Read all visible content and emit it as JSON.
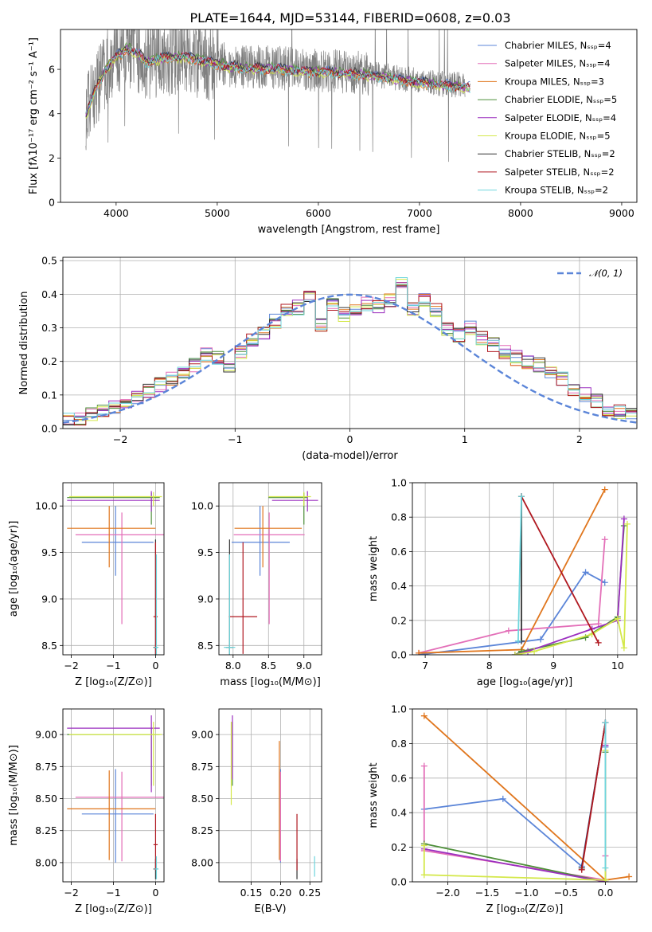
{
  "title": "PLATE=1644, MJD=53144, FIBERID=0608, z=0.03",
  "colors": {
    "Chabrier MILES": "#5b85d8",
    "Salpeter MILES": "#e36fb8",
    "Kroupa MILES": "#e0761d",
    "Chabrier ELODIE": "#4e8f3a",
    "Salpeter ELODIE": "#9b2fbf",
    "Kroupa ELODIE": "#d4e84a",
    "Chabrier STELIB": "#333333",
    "Salpeter STELIB": "#b01820",
    "Kroupa STELIB": "#6fd6dd",
    "data": "#808080"
  },
  "chart_data": [
    {
      "type": "line",
      "panel": "spectrum",
      "xlabel": "wavelength [Angstrom, rest frame]",
      "ylabel": "Flux [fλ10⁻¹⁷ erg cm⁻² s⁻¹ A⁻¹]",
      "xlim": [
        3450,
        9150
      ],
      "ylim": [
        0,
        7.8
      ],
      "xticks": [
        "4000",
        "5000",
        "6000",
        "7000",
        "8000",
        "9000"
      ],
      "yticks": [
        "0",
        "2",
        "4",
        "6"
      ],
      "legend": [
        "Chabrier MILES, Nₛₛₚ=4",
        "Salpeter MILES, Nₛₛₚ=4",
        "Kroupa MILES, Nₛₛₚ=3",
        "Chabrier ELODIE, Nₛₛₚ=5",
        "Salpeter ELODIE, Nₛₛₚ=4",
        "Kroupa ELODIE, Nₛₛₚ=5",
        "Chabrier STELIB, Nₛₛₚ=2",
        "Salpeter STELIB, Nₛₛₚ=2",
        "Kroupa STELIB, Nₛₛₚ=2"
      ],
      "legend_position": "top-right",
      "model_continuum": {
        "x": [
          3700,
          3800,
          3900,
          4000,
          4100,
          4200,
          4300,
          4500,
          4700,
          4900,
          5100,
          5300,
          5500,
          5800,
          6000,
          6200,
          6500,
          6800,
          7000,
          7200,
          7400,
          7500
        ],
        "y": [
          4.0,
          5.2,
          6.1,
          6.6,
          7.0,
          6.8,
          6.4,
          6.6,
          6.6,
          6.4,
          6.2,
          6.1,
          6.1,
          6.0,
          5.95,
          5.9,
          5.8,
          5.6,
          5.45,
          5.35,
          5.3,
          5.2
        ]
      },
      "data_extent": [
        3700,
        7450
      ]
    },
    {
      "type": "histogram",
      "panel": "residuals",
      "xlabel": "(data-model)/error",
      "ylabel": "Normed distribution",
      "xlim": [
        -2.5,
        2.5
      ],
      "ylim": [
        0,
        0.51
      ],
      "xticks": [
        "−2",
        "−1",
        "0",
        "1",
        "2"
      ],
      "yticks": [
        "0.0",
        "0.1",
        "0.2",
        "0.3",
        "0.4",
        "0.5"
      ],
      "bin_width": 0.1,
      "bin_start": -2.5,
      "reference": {
        "label": "𝒩(0, 1)",
        "mean": 0,
        "sigma": 1,
        "color": "#5b85d8"
      },
      "legend_position": "top-right",
      "approx_values": [
        0.025,
        0.03,
        0.04,
        0.05,
        0.06,
        0.07,
        0.09,
        0.11,
        0.13,
        0.15,
        0.17,
        0.19,
        0.22,
        0.21,
        0.19,
        0.23,
        0.26,
        0.28,
        0.32,
        0.35,
        0.36,
        0.4,
        0.31,
        0.37,
        0.34,
        0.36,
        0.37,
        0.36,
        0.38,
        0.44,
        0.36,
        0.38,
        0.35,
        0.3,
        0.28,
        0.3,
        0.27,
        0.25,
        0.23,
        0.21,
        0.2,
        0.19,
        0.17,
        0.15,
        0.12,
        0.1,
        0.08,
        0.06,
        0.05,
        0.04
      ]
    },
    {
      "type": "scatter",
      "panel": "age-vs-Z",
      "xlabel": "Z [log₁₀(Z/Z⊙)]",
      "ylabel": "age  [log₁₀(age/yr)]",
      "xlim": [
        -2.2,
        0.2
      ],
      "ylim": [
        8.4,
        10.25
      ],
      "xticks": [
        "−2",
        "−1",
        "0"
      ],
      "yticks": [
        "8.5",
        "9.0",
        "9.5",
        "10.0"
      ],
      "points": [
        {
          "model": "Chabrier MILES",
          "x": -0.95,
          "xerr": [
            0.8,
            0.9
          ],
          "y": 9.61,
          "yerr": [
            0.36,
            0.39
          ]
        },
        {
          "model": "Salpeter MILES",
          "x": -0.8,
          "xerr": [
            1.1,
            1.1
          ],
          "y": 9.69,
          "yerr": [
            0.96,
            0.24
          ]
        },
        {
          "model": "Kroupa MILES",
          "x": -1.1,
          "xerr": [
            1.0,
            1.1
          ],
          "y": 9.76,
          "yerr": [
            0.42,
            0.24
          ]
        },
        {
          "model": "Chabrier ELODIE",
          "x": -0.1,
          "xerr": [
            2.0,
            0.2
          ],
          "y": 10.09,
          "yerr": [
            0.29,
            0.05
          ]
        },
        {
          "model": "Salpeter ELODIE",
          "x": -0.1,
          "xerr": [
            2.0,
            0.2
          ],
          "y": 10.06,
          "yerr": [
            0.12,
            0.1
          ]
        },
        {
          "model": "Kroupa ELODIE",
          "x": -0.05,
          "xerr": [
            2.0,
            0.2
          ],
          "y": 10.1,
          "yerr": [
            0.1,
            0.05
          ]
        },
        {
          "model": "Chabrier STELIB",
          "x": 0.0,
          "xerr": [
            0.05,
            0.05
          ],
          "y": 8.48,
          "yerr": [
            0.1,
            1.16
          ]
        },
        {
          "model": "Salpeter STELIB",
          "x": 0.0,
          "xerr": [
            0.05,
            0.05
          ],
          "y": 8.81,
          "yerr": [
            0.4,
            0.8
          ]
        },
        {
          "model": "Kroupa STELIB",
          "x": 0.02,
          "xerr": [
            0.05,
            0.05
          ],
          "y": 8.48,
          "yerr": [
            0.1,
            1.0
          ]
        }
      ]
    },
    {
      "type": "scatter",
      "panel": "age-vs-mass",
      "xlabel": "mass [log₁₀(M/M⊙)]",
      "xlim": [
        7.8,
        9.25
      ],
      "ylim": [
        8.4,
        10.25
      ],
      "xticks": [
        "8.0",
        "8.5",
        "9.0"
      ],
      "yticks": [
        "8.5",
        "9.0",
        "9.5",
        "10.0"
      ],
      "points": [
        {
          "model": "Chabrier MILES",
          "x": 8.38,
          "xerr": [
            0.4,
            0.42
          ],
          "y": 9.61,
          "yerr": [
            0.36,
            0.39
          ]
        },
        {
          "model": "Salpeter MILES",
          "x": 8.51,
          "xerr": [
            0.5,
            0.5
          ],
          "y": 9.69,
          "yerr": [
            0.96,
            0.24
          ]
        },
        {
          "model": "Kroupa MILES",
          "x": 8.42,
          "xerr": [
            0.4,
            0.55
          ],
          "y": 9.76,
          "yerr": [
            0.42,
            0.24
          ]
        },
        {
          "model": "Chabrier ELODIE",
          "x": 9.0,
          "xerr": [
            0.5,
            0.05
          ],
          "y": 10.09,
          "yerr": [
            0.29,
            0.05
          ]
        },
        {
          "model": "Salpeter ELODIE",
          "x": 9.05,
          "xerr": [
            0.5,
            0.15
          ],
          "y": 10.06,
          "yerr": [
            0.12,
            0.1
          ]
        },
        {
          "model": "Kroupa ELODIE",
          "x": 9.0,
          "xerr": [
            0.5,
            0.1
          ],
          "y": 10.1,
          "yerr": [
            0.1,
            0.05
          ]
        },
        {
          "model": "Chabrier STELIB",
          "x": 7.95,
          "xerr": [
            0.05,
            0.05
          ],
          "y": 8.48,
          "yerr": [
            0.1,
            1.16
          ]
        },
        {
          "model": "Salpeter STELIB",
          "x": 8.14,
          "xerr": [
            0.2,
            0.2
          ],
          "y": 8.81,
          "yerr": [
            0.4,
            0.8
          ]
        },
        {
          "model": "Kroupa STELIB",
          "x": 7.95,
          "xerr": [
            0.08,
            0.08
          ],
          "y": 8.48,
          "yerr": [
            0.1,
            1.0
          ]
        }
      ]
    },
    {
      "type": "line",
      "panel": "weight-vs-age",
      "xlabel": "age  [log₁₀(age/yr)]",
      "ylabel": "mass weight",
      "xlim": [
        6.8,
        10.3
      ],
      "ylim": [
        0,
        1
      ],
      "xticks": [
        "7",
        "8",
        "9",
        "10"
      ],
      "yticks": [
        "0.0",
        "0.2",
        "0.4",
        "0.6",
        "0.8",
        "1.0"
      ],
      "series": [
        {
          "model": "Chabrier MILES",
          "points": [
            [
              6.9,
              0.0
            ],
            [
              8.8,
              0.09
            ],
            [
              9.5,
              0.48
            ],
            [
              9.8,
              0.42
            ]
          ]
        },
        {
          "model": "Salpeter MILES",
          "points": [
            [
              6.9,
              0.01
            ],
            [
              8.3,
              0.14
            ],
            [
              9.7,
              0.18
            ],
            [
              9.8,
              0.67
            ]
          ]
        },
        {
          "model": "Kroupa MILES",
          "points": [
            [
              6.9,
              0.01
            ],
            [
              8.5,
              0.03
            ],
            [
              9.8,
              0.96
            ]
          ]
        },
        {
          "model": "Chabrier ELODIE",
          "points": [
            [
              8.4,
              0.0
            ],
            [
              8.5,
              0.02
            ],
            [
              9.5,
              0.1
            ],
            [
              10.0,
              0.22
            ],
            [
              10.1,
              0.75
            ]
          ]
        },
        {
          "model": "Salpeter ELODIE",
          "points": [
            [
              8.4,
              0.0
            ],
            [
              8.6,
              0.02
            ],
            [
              9.6,
              0.15
            ],
            [
              10.0,
              0.2
            ],
            [
              10.1,
              0.79
            ]
          ]
        },
        {
          "model": "Kroupa ELODIE",
          "points": [
            [
              8.4,
              0.0
            ],
            [
              8.7,
              0.02
            ],
            [
              9.6,
              0.12
            ],
            [
              10.0,
              0.21
            ],
            [
              10.1,
              0.04
            ],
            [
              10.15,
              0.76
            ]
          ]
        },
        {
          "model": "Chabrier STELIB",
          "points": [
            [
              8.5,
              0.08
            ],
            [
              8.5,
              0.92
            ]
          ]
        },
        {
          "model": "Salpeter STELIB",
          "points": [
            [
              8.5,
              0.92
            ],
            [
              9.7,
              0.07
            ]
          ]
        },
        {
          "model": "Kroupa STELIB",
          "points": [
            [
              8.5,
              0.92
            ],
            [
              8.45,
              0.08
            ]
          ]
        }
      ]
    },
    {
      "type": "scatter",
      "panel": "mass-vs-Z",
      "xlabel": "Z [log₁₀(Z/Z⊙)]",
      "ylabel": "mass [log₁₀(M/M⊙)]",
      "xlim": [
        -2.2,
        0.2
      ],
      "ylim": [
        7.85,
        9.2
      ],
      "xticks": [
        "−2",
        "−1",
        "0"
      ],
      "yticks": [
        "8.00",
        "8.25",
        "8.50",
        "8.75",
        "9.00"
      ],
      "points": [
        {
          "model": "Chabrier MILES",
          "x": -0.95,
          "xerr": [
            0.8,
            0.9
          ],
          "y": 8.38,
          "yerr": [
            0.38,
            0.35
          ]
        },
        {
          "model": "Salpeter MILES",
          "x": -0.8,
          "xerr": [
            1.1,
            1.1
          ],
          "y": 8.51,
          "yerr": [
            0.5,
            0.2
          ]
        },
        {
          "model": "Kroupa MILES",
          "x": -1.1,
          "xerr": [
            1.0,
            1.1
          ],
          "y": 8.42,
          "yerr": [
            0.4,
            0.3
          ]
        },
        {
          "model": "Chabrier ELODIE",
          "x": -0.1,
          "xerr": [
            2.0,
            0.2
          ],
          "y": 9.0,
          "yerr": [
            0.4,
            0.05
          ]
        },
        {
          "model": "Salpeter ELODIE",
          "x": -0.1,
          "xerr": [
            2.0,
            0.2
          ],
          "y": 9.05,
          "yerr": [
            0.5,
            0.1
          ]
        },
        {
          "model": "Kroupa ELODIE",
          "x": -0.05,
          "xerr": [
            2.0,
            0.2
          ],
          "y": 9.0,
          "yerr": [
            0.4,
            0.1
          ]
        },
        {
          "model": "Chabrier STELIB",
          "x": 0.0,
          "xerr": [
            0.05,
            0.05
          ],
          "y": 7.95,
          "yerr": [
            0.08,
            0.08
          ]
        },
        {
          "model": "Salpeter STELIB",
          "x": 0.0,
          "xerr": [
            0.05,
            0.05
          ],
          "y": 8.14,
          "yerr": [
            0.2,
            0.24
          ]
        },
        {
          "model": "Kroupa STELIB",
          "x": 0.02,
          "xerr": [
            0.05,
            0.05
          ],
          "y": 7.95,
          "yerr": [
            0.08,
            0.1
          ]
        }
      ]
    },
    {
      "type": "scatter",
      "panel": "mass-vs-ebv",
      "xlabel": "E(B-V)",
      "xlim": [
        0.095,
        0.27
      ],
      "ylim": [
        7.85,
        9.2
      ],
      "xticks": [
        "0.15",
        "0.20",
        "0.25"
      ],
      "yticks": [
        "8.00",
        "8.25",
        "8.50",
        "8.75",
        "9.00"
      ],
      "points": [
        {
          "model": "Chabrier MILES",
          "x": 0.2,
          "y": 8.38,
          "yerr": [
            0.38,
            0.35
          ]
        },
        {
          "model": "Salpeter MILES",
          "x": 0.2,
          "y": 8.51,
          "yerr": [
            0.5,
            0.2
          ]
        },
        {
          "model": "Kroupa MILES",
          "x": 0.198,
          "y": 8.42,
          "yerr": [
            0.4,
            0.53
          ]
        },
        {
          "model": "Chabrier ELODIE",
          "x": 0.118,
          "y": 9.0,
          "yerr": [
            0.4,
            0.1
          ]
        },
        {
          "model": "Salpeter ELODIE",
          "x": 0.118,
          "y": 9.05,
          "yerr": [
            0.4,
            0.1
          ]
        },
        {
          "model": "Kroupa ELODIE",
          "x": 0.116,
          "y": 9.0,
          "yerr": [
            0.55,
            0.1
          ]
        },
        {
          "model": "Chabrier STELIB",
          "x": 0.228,
          "y": 7.95,
          "yerr": [
            0.08,
            0.08
          ]
        },
        {
          "model": "Salpeter STELIB",
          "x": 0.228,
          "y": 8.14,
          "yerr": [
            0.2,
            0.24
          ]
        },
        {
          "model": "Kroupa STELIB",
          "x": 0.258,
          "y": 7.95,
          "yerr": [
            0.06,
            0.1
          ]
        }
      ]
    },
    {
      "type": "line",
      "panel": "weight-vs-Z",
      "xlabel": "Z [log₁₀(Z/Z⊙)]",
      "ylabel": "mass weight",
      "xlim": [
        -2.45,
        0.4
      ],
      "ylim": [
        0,
        1
      ],
      "xticks": [
        "−2.0",
        "−1.5",
        "−1.0",
        "−0.5",
        "0.0"
      ],
      "yticks": [
        "0.0",
        "0.2",
        "0.4",
        "0.6",
        "0.8",
        "1.0"
      ],
      "series": [
        {
          "model": "Chabrier MILES",
          "points": [
            [
              -2.3,
              0.42
            ],
            [
              -1.3,
              0.48
            ],
            [
              -0.3,
              0.09
            ],
            [
              0.0,
              0.92
            ],
            [
              0.0,
              0.78
            ]
          ]
        },
        {
          "model": "Salpeter MILES",
          "points": [
            [
              -2.3,
              0.67
            ],
            [
              -2.3,
              0.18
            ],
            [
              0.0,
              0.01
            ],
            [
              0.0,
              0.15
            ]
          ]
        },
        {
          "model": "Kroupa MILES",
          "points": [
            [
              -2.3,
              0.96
            ],
            [
              0.0,
              0.01
            ],
            [
              0.3,
              0.03
            ]
          ]
        },
        {
          "model": "Chabrier ELODIE",
          "points": [
            [
              -2.3,
              0.22
            ],
            [
              0.0,
              0.0
            ],
            [
              0.0,
              0.75
            ]
          ]
        },
        {
          "model": "Salpeter ELODIE",
          "points": [
            [
              -2.3,
              0.19
            ],
            [
              0.0,
              0.0
            ],
            [
              0.0,
              0.79
            ]
          ]
        },
        {
          "model": "Kroupa ELODIE",
          "points": [
            [
              -2.3,
              0.21
            ],
            [
              -2.3,
              0.04
            ],
            [
              0.0,
              0.01
            ],
            [
              0.0,
              0.76
            ]
          ]
        },
        {
          "model": "Chabrier STELIB",
          "points": [
            [
              -0.3,
              0.08
            ],
            [
              0.0,
              0.92
            ]
          ]
        },
        {
          "model": "Salpeter STELIB",
          "points": [
            [
              -0.3,
              0.07
            ],
            [
              0.0,
              0.92
            ]
          ]
        },
        {
          "model": "Kroupa STELIB",
          "points": [
            [
              0.0,
              0.08
            ],
            [
              0.0,
              0.92
            ]
          ]
        }
      ]
    }
  ]
}
